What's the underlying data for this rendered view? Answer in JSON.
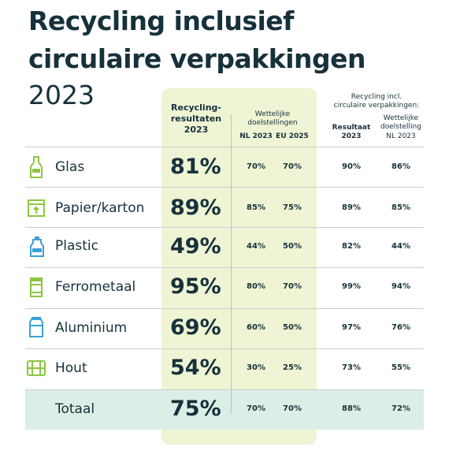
{
  "title": {
    "line1": "Recycling inclusief",
    "line2": "circulaire verpakkingen",
    "line3": "2023"
  },
  "headers": {
    "recycling_results": "Recycling-\nresultaten\n2023",
    "legal_targets": "Wettelijke\ndoelstellingen",
    "nl2023": "NL 2023",
    "eu2025": "EU 2025",
    "incl_group": "Recycling incl.\ncirculaire verpakkingen:",
    "result2023": "Resultaat\n2023",
    "legal_target_nl": "Wettelijke\ndoelstelling\nNL 2023"
  },
  "chart_data": {
    "type": "table",
    "title": "Recycling inclusief circulaire verpakkingen 2023",
    "columns": [
      "Recycling-resultaten 2023",
      "Wettelijke doelstellingen NL 2023",
      "Wettelijke doelstellingen EU 2025",
      "Recycling incl. circulaire verpakkingen: Resultaat 2023",
      "Recycling incl. circulaire verpakkingen: Wettelijke doelstelling NL 2023"
    ],
    "rows": [
      {
        "name": "Glas",
        "icon": "bottle-icon",
        "result": "81%",
        "nl2023": "70%",
        "eu2025": "70%",
        "incl_result": "90%",
        "incl_target": "86%"
      },
      {
        "name": "Papier/karton",
        "icon": "box-icon",
        "result": "89%",
        "nl2023": "85%",
        "eu2025": "75%",
        "incl_result": "89%",
        "incl_target": "85%"
      },
      {
        "name": "Plastic",
        "icon": "plastic-bottle-icon",
        "result": "49%",
        "nl2023": "44%",
        "eu2025": "50%",
        "incl_result": "82%",
        "incl_target": "44%"
      },
      {
        "name": "Ferrometaal",
        "icon": "can-icon",
        "result": "95%",
        "nl2023": "80%",
        "eu2025": "70%",
        "incl_result": "99%",
        "incl_target": "94%"
      },
      {
        "name": "Aluminium",
        "icon": "aluminium-can-icon",
        "result": "69%",
        "nl2023": "60%",
        "eu2025": "50%",
        "incl_result": "97%",
        "incl_target": "76%"
      },
      {
        "name": "Hout",
        "icon": "crate-icon",
        "result": "54%",
        "nl2023": "30%",
        "eu2025": "25%",
        "incl_result": "73%",
        "incl_target": "55%"
      }
    ],
    "total": {
      "name": "Totaal",
      "result": "75%",
      "nl2023": "70%",
      "eu2025": "70%",
      "incl_result": "88%",
      "incl_target": "72%"
    }
  },
  "colors": {
    "text": "#16313b",
    "highlight": "#eef4d4",
    "total_band": "#dcefe6",
    "icon_green": "#8cc63f",
    "icon_blue": "#3aa0d8"
  }
}
